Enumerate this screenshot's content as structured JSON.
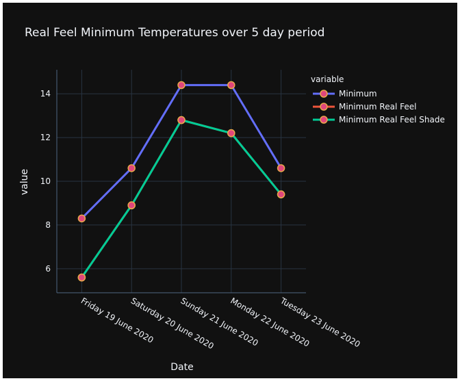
{
  "chart_data": {
    "type": "line",
    "title": "Real Feel Minimum Temperatures over 5 day period",
    "xlabel": "Date",
    "ylabel": "value",
    "categories": [
      "Friday 19 June 2020",
      "Saturday 20 June 2020",
      "Sunday 21 June 2020",
      "Monday 22 June 2020",
      "Tuesday 23 June 2020"
    ],
    "ylim": [
      4.9,
      15.1
    ],
    "yticks": [
      6,
      8,
      10,
      12,
      14
    ],
    "grid": true,
    "legend": {
      "title": "variable",
      "placement": "top-right"
    },
    "marker_colors": {
      "fill": "#e0467c",
      "outline": "#e8a84a"
    },
    "series": [
      {
        "name": "Minimum",
        "color": "#636efa",
        "values": [
          8.3,
          10.6,
          14.4,
          14.4,
          10.6
        ]
      },
      {
        "name": "Minimum Real Feel",
        "color": "#ef553b",
        "values": [
          5.6,
          8.9,
          12.8,
          12.2,
          9.4
        ]
      },
      {
        "name": "Minimum Real Feel Shade",
        "color": "#00cc96",
        "values": [
          5.6,
          8.9,
          12.8,
          12.2,
          9.4
        ]
      }
    ]
  },
  "theme": {
    "paper_bg": "#111111",
    "grid_color": "#283442",
    "axis_line_color": "#506784",
    "text_color": "#f2f5fa"
  }
}
